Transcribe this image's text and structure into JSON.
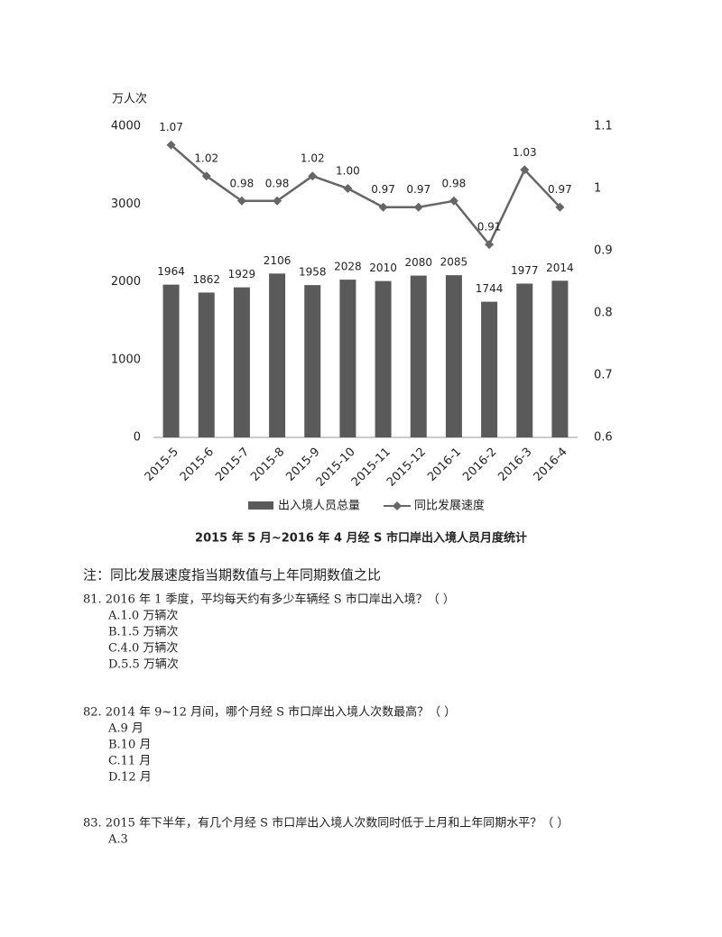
{
  "chart_data": {
    "type": "bar-line",
    "y_label": "万人次",
    "caption": "2015 年 5 月~2016 年 4 月经 S 市口岸出入境人员月度统计",
    "categories": [
      "2015-5",
      "2015-6",
      "2015-7",
      "2015-8",
      "2015-9",
      "2015-10",
      "2015-11",
      "2015-12",
      "2016-1",
      "2016-2",
      "2016-3",
      "2016-4"
    ],
    "series": [
      {
        "name": "出入境人员总量",
        "color": "#5a5a5a",
        "values": [
          1964,
          1862,
          1929,
          2106,
          1958,
          2028,
          2010,
          2080,
          2085,
          1744,
          1977,
          2014
        ]
      },
      {
        "name": "同比发展速度",
        "color": "#666666",
        "axis": "y2",
        "values": [
          1.07,
          1.02,
          0.98,
          0.98,
          1.02,
          1.0,
          0.97,
          0.97,
          0.98,
          0.91,
          1.03,
          0.97
        ],
        "value_labels": [
          "1.07",
          "1.02",
          "0.98",
          "0.98",
          "1.02",
          "1.00",
          "0.97",
          "0.97",
          "0.98",
          "0.91",
          "1.03",
          "0.97"
        ]
      }
    ],
    "ylim": [
      0,
      4000
    ],
    "yticks": [
      0,
      1000,
      2000,
      3000,
      4000
    ],
    "y2lim": [
      0.6,
      1.1
    ],
    "y2ticks": [
      0.6,
      0.7,
      0.8,
      0.9,
      1,
      1.1
    ],
    "legend": "bottom"
  },
  "note": "注：同比发展速度指当期数值与上年同期数值之比",
  "questions": [
    {
      "text": "81. 2016 年 1 季度，平均每天约有多少车辆经 S 市口岸出入境？（        ）",
      "options": [
        "A.1.0 万辆次",
        "B.1.5 万辆次",
        "C.4.0 万辆次",
        "D.5.5 万辆次"
      ]
    },
    {
      "text": "82. 2014 年 9~12 月间，哪个月经 S 市口岸出入境人次数最高？（        ）",
      "options": [
        "A.9 月",
        "B.10 月",
        "C.11 月",
        "D.12 月"
      ]
    },
    {
      "text": "83. 2015 年下半年，有几个月经 S 市口岸出入境人次数同时低于上月和上年同期水平？（        ）",
      "options": [
        "A.3"
      ]
    }
  ]
}
